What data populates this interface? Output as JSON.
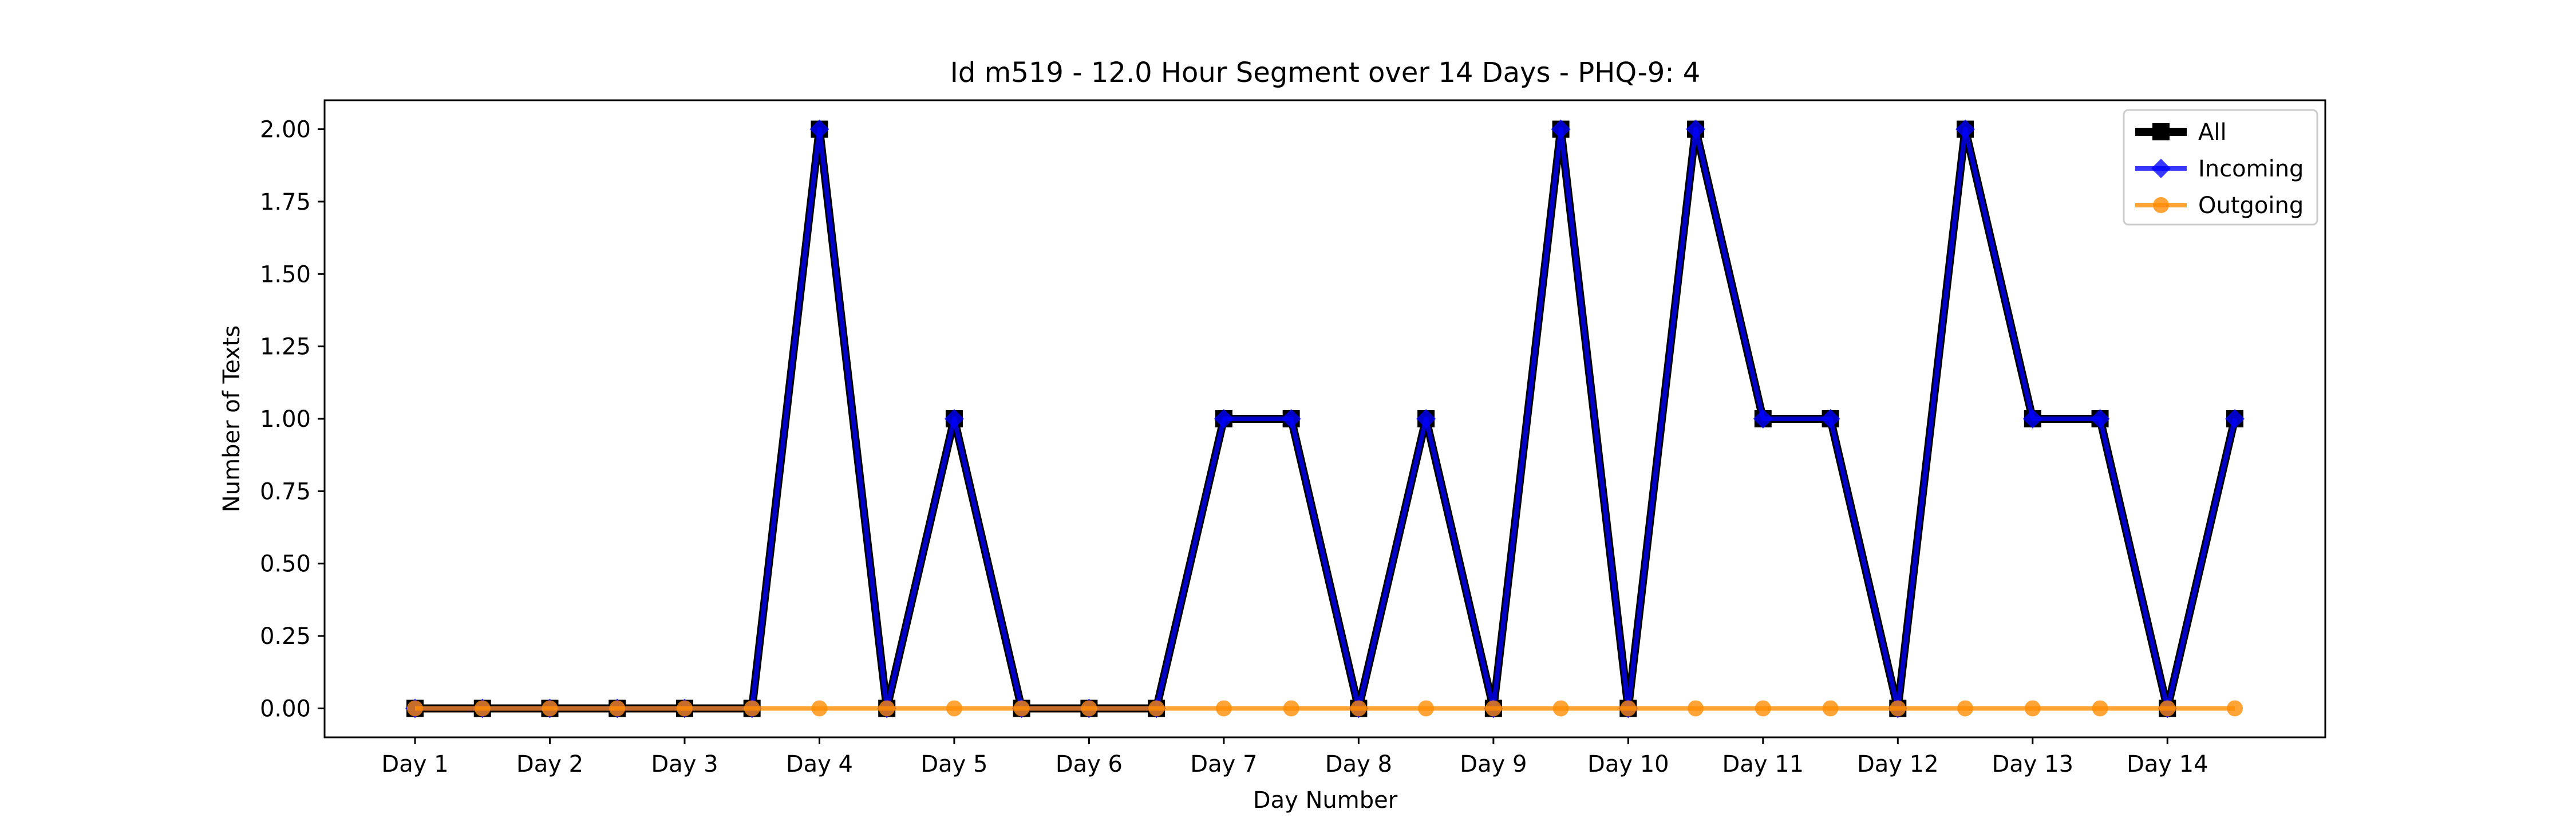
{
  "chart_data": {
    "type": "line",
    "title": "Id m519 - 12.0 Hour Segment over 14 Days - PHQ-9: 4",
    "xlabel": "Day Number",
    "ylabel": "Number of Texts",
    "ylim": [
      -0.1,
      2.1
    ],
    "y_ticks": [
      "0.00",
      "0.25",
      "0.50",
      "0.75",
      "1.00",
      "1.25",
      "1.50",
      "1.75",
      "2.00"
    ],
    "x_ticks": [
      "Day 1",
      "Day 2",
      "Day 3",
      "Day 4",
      "Day 5",
      "Day 6",
      "Day 7",
      "Day 8",
      "Day 9",
      "Day 10",
      "Day 11",
      "Day 12",
      "Day 13",
      "Day 14"
    ],
    "grid": false,
    "legend_position": "top-right",
    "series": [
      {
        "name": "All",
        "color": "#000000",
        "marker": "square",
        "values": [
          0,
          0,
          0,
          0,
          0,
          0,
          2,
          0,
          1,
          0,
          0,
          0,
          1,
          1,
          0,
          1,
          0,
          2,
          0,
          2,
          1,
          1,
          0,
          2,
          1,
          1,
          0,
          1
        ]
      },
      {
        "name": "Incoming",
        "color": "#0000ff",
        "marker": "diamond",
        "values": [
          0,
          0,
          0,
          0,
          0,
          0,
          2,
          0,
          1,
          0,
          0,
          0,
          1,
          1,
          0,
          1,
          0,
          2,
          0,
          2,
          1,
          1,
          0,
          2,
          1,
          1,
          0,
          1
        ]
      },
      {
        "name": "Outgoing",
        "color": "#ff8c00",
        "marker": "circle",
        "values": [
          0,
          0,
          0,
          0,
          0,
          0,
          0,
          0,
          0,
          0,
          0,
          0,
          0,
          0,
          0,
          0,
          0,
          0,
          0,
          0,
          0,
          0,
          0,
          0,
          0,
          0,
          0,
          0
        ]
      }
    ]
  }
}
